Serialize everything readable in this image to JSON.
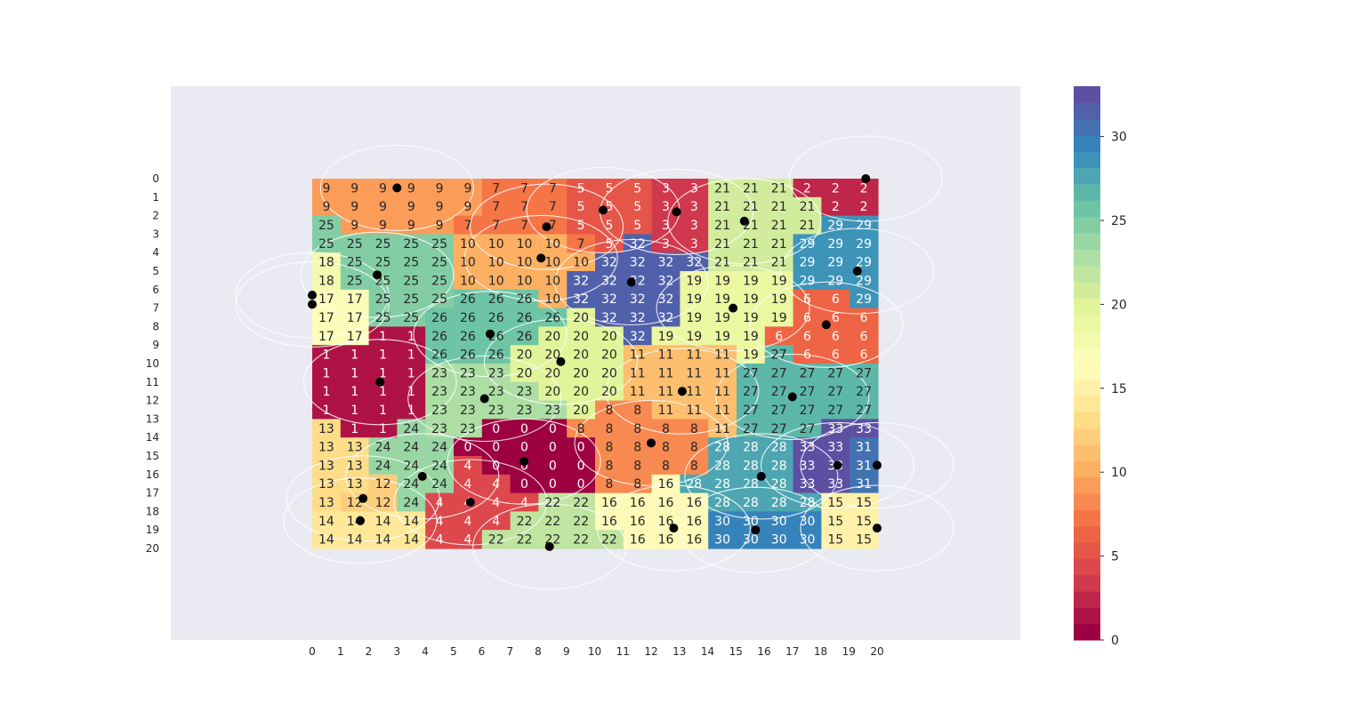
{
  "chart_data": [
    {
      "type": "heatmap",
      "title": "",
      "xlabel": "",
      "ylabel": "",
      "x_ticks": [
        0,
        1,
        2,
        3,
        4,
        5,
        6,
        7,
        8,
        9,
        10,
        11,
        12,
        13,
        14,
        15,
        16,
        17,
        18,
        19,
        20
      ],
      "y_ticks": [
        0,
        1,
        2,
        3,
        4,
        5,
        6,
        7,
        8,
        9,
        10,
        11,
        12,
        13,
        14,
        15,
        16,
        17,
        18,
        19,
        20
      ],
      "z": [
        [
          9,
          9,
          9,
          9,
          9,
          9,
          7,
          7,
          7,
          5,
          5,
          5,
          3,
          3,
          21,
          21,
          21,
          2,
          2,
          2
        ],
        [
          9,
          9,
          9,
          9,
          9,
          9,
          7,
          7,
          7,
          5,
          5,
          5,
          3,
          3,
          21,
          21,
          21,
          21,
          2,
          2
        ],
        [
          25,
          9,
          9,
          9,
          9,
          7,
          7,
          7,
          7,
          5,
          5,
          5,
          3,
          3,
          21,
          21,
          21,
          21,
          29,
          29
        ],
        [
          25,
          25,
          25,
          25,
          25,
          10,
          10,
          10,
          10,
          7,
          5,
          32,
          3,
          3,
          21,
          21,
          21,
          29,
          29,
          29
        ],
        [
          18,
          25,
          25,
          25,
          25,
          10,
          10,
          10,
          10,
          10,
          32,
          32,
          32,
          32,
          21,
          21,
          21,
          29,
          29,
          29
        ],
        [
          18,
          25,
          25,
          25,
          25,
          10,
          10,
          10,
          10,
          32,
          32,
          32,
          32,
          19,
          19,
          19,
          19,
          29,
          29,
          29
        ],
        [
          17,
          17,
          25,
          25,
          25,
          26,
          26,
          26,
          10,
          32,
          32,
          32,
          32,
          19,
          19,
          19,
          19,
          6,
          6,
          29
        ],
        [
          17,
          17,
          25,
          25,
          26,
          26,
          26,
          26,
          26,
          20,
          32,
          32,
          32,
          19,
          19,
          19,
          19,
          6,
          6,
          6
        ],
        [
          17,
          17,
          1,
          1,
          26,
          26,
          26,
          26,
          20,
          20,
          20,
          32,
          19,
          19,
          19,
          19,
          6,
          6,
          6,
          6
        ],
        [
          1,
          1,
          1,
          1,
          26,
          26,
          26,
          20,
          20,
          20,
          20,
          11,
          11,
          11,
          11,
          19,
          27,
          6,
          6,
          6
        ],
        [
          1,
          1,
          1,
          1,
          23,
          23,
          23,
          20,
          20,
          20,
          20,
          11,
          11,
          11,
          11,
          27,
          27,
          27,
          27,
          27
        ],
        [
          1,
          1,
          1,
          1,
          23,
          23,
          23,
          23,
          20,
          20,
          20,
          11,
          11,
          11,
          11,
          27,
          27,
          27,
          27,
          27
        ],
        [
          1,
          1,
          1,
          1,
          23,
          23,
          23,
          23,
          23,
          20,
          8,
          8,
          11,
          11,
          11,
          27,
          27,
          27,
          27,
          27
        ],
        [
          13,
          1,
          1,
          24,
          23,
          23,
          0,
          0,
          0,
          8,
          8,
          8,
          8,
          8,
          11,
          27,
          27,
          27,
          33,
          33
        ],
        [
          13,
          13,
          24,
          24,
          24,
          0,
          0,
          0,
          0,
          0,
          8,
          8,
          8,
          8,
          28,
          28,
          28,
          33,
          33,
          31
        ],
        [
          13,
          13,
          24,
          24,
          24,
          4,
          0,
          0,
          0,
          0,
          8,
          8,
          8,
          8,
          28,
          28,
          28,
          33,
          33,
          31
        ],
        [
          13,
          13,
          12,
          24,
          24,
          4,
          4,
          0,
          0,
          0,
          8,
          8,
          16,
          28,
          28,
          28,
          28,
          33,
          33,
          31
        ],
        [
          13,
          12,
          12,
          24,
          4,
          4,
          4,
          4,
          22,
          22,
          16,
          16,
          16,
          16,
          28,
          28,
          28,
          28,
          15,
          15
        ],
        [
          14,
          14,
          14,
          14,
          4,
          4,
          4,
          22,
          22,
          22,
          16,
          16,
          16,
          16,
          30,
          30,
          30,
          30,
          15,
          15
        ],
        [
          14,
          14,
          14,
          14,
          4,
          4,
          22,
          22,
          22,
          22,
          22,
          16,
          16,
          16,
          30,
          30,
          30,
          30,
          15,
          15
        ]
      ],
      "points": [
        {
          "x": 3.0,
          "y": 0.5
        },
        {
          "x": 19.6,
          "y": 0.0
        },
        {
          "x": 10.3,
          "y": 1.7
        },
        {
          "x": 12.9,
          "y": 1.8
        },
        {
          "x": 15.3,
          "y": 2.3
        },
        {
          "x": 8.3,
          "y": 2.6
        },
        {
          "x": 8.1,
          "y": 4.3
        },
        {
          "x": 2.3,
          "y": 5.2
        },
        {
          "x": 19.3,
          "y": 5.0
        },
        {
          "x": 11.3,
          "y": 5.6
        },
        {
          "x": 0.0,
          "y": 6.3
        },
        {
          "x": 0.0,
          "y": 6.8
        },
        {
          "x": 14.9,
          "y": 7.0
        },
        {
          "x": 18.2,
          "y": 7.9
        },
        {
          "x": 6.3,
          "y": 8.4
        },
        {
          "x": 8.8,
          "y": 9.9
        },
        {
          "x": 2.4,
          "y": 11.0
        },
        {
          "x": 13.1,
          "y": 11.5
        },
        {
          "x": 6.1,
          "y": 11.9
        },
        {
          "x": 17.0,
          "y": 11.8
        },
        {
          "x": 12.0,
          "y": 14.3
        },
        {
          "x": 7.5,
          "y": 15.3
        },
        {
          "x": 18.6,
          "y": 15.5
        },
        {
          "x": 20.0,
          "y": 15.5
        },
        {
          "x": 3.9,
          "y": 16.1
        },
        {
          "x": 15.9,
          "y": 16.1
        },
        {
          "x": 1.8,
          "y": 17.3
        },
        {
          "x": 5.6,
          "y": 17.5
        },
        {
          "x": 1.7,
          "y": 18.5
        },
        {
          "x": 12.8,
          "y": 18.9
        },
        {
          "x": 15.7,
          "y": 19.0
        },
        {
          "x": 20.0,
          "y": 18.9
        },
        {
          "x": 8.4,
          "y": 19.9
        }
      ],
      "colorbar": {
        "min": 0,
        "max": 33,
        "ticks": [
          0,
          5,
          10,
          15,
          20,
          25,
          30
        ],
        "colormap": "Spectral",
        "levels": 34
      },
      "grid": false,
      "background": "#eaeaf2"
    }
  ]
}
